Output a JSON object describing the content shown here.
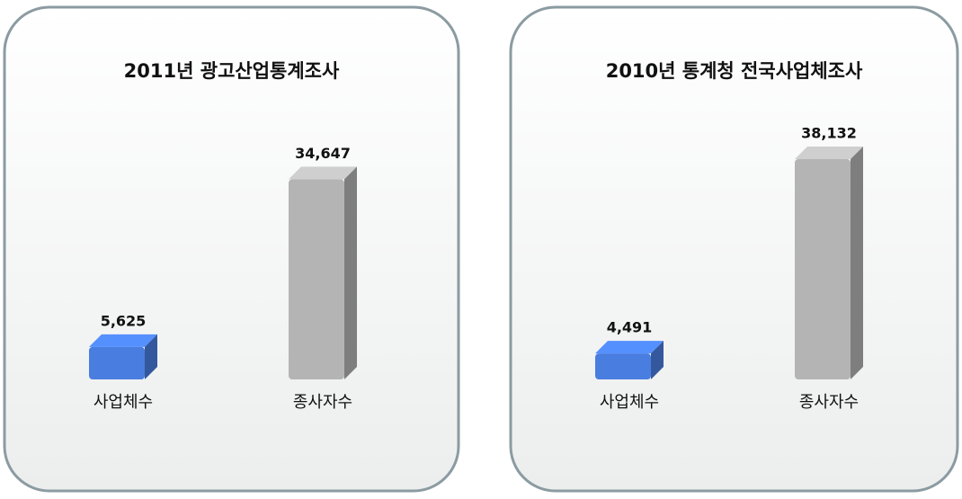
{
  "chart_data": [
    {
      "type": "bar",
      "title": "2011년 광고산업통계조사",
      "categories": [
        "사업체수",
        "종사자수"
      ],
      "values": [
        5625,
        34647
      ],
      "value_labels": [
        "5,625",
        "34,647"
      ],
      "colors": [
        "#4a7de0",
        "#b4b4b4"
      ]
    },
    {
      "type": "bar",
      "title": "2010년 통계청 전국사업체조사",
      "categories": [
        "사업체수",
        "종사자수"
      ],
      "values": [
        4491,
        38132
      ],
      "value_labels": [
        "4,491",
        "38,132"
      ],
      "colors": [
        "#4a7de0",
        "#b4b4b4"
      ]
    }
  ]
}
